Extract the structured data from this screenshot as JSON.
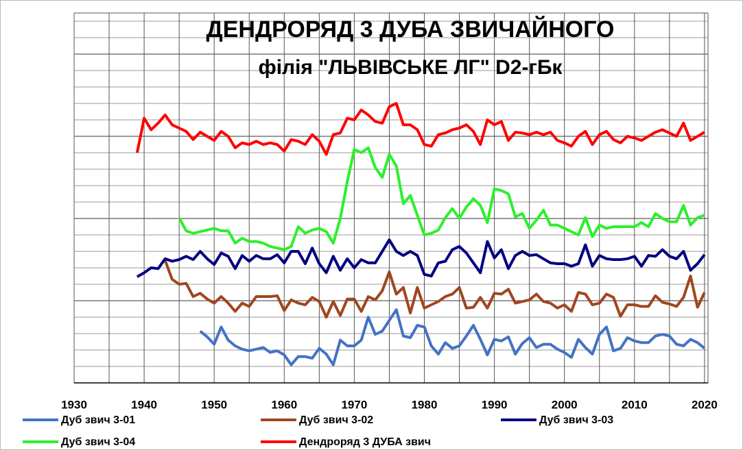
{
  "chart_data": {
    "type": "line",
    "title": "ДЕНДРОРЯД 3       ДУБА ЗВИЧАЙНОГО",
    "subtitle": "філія \"ЛЬВІВСЬКЕ ЛГ\"     D2-гБк",
    "x": [
      1939,
      1940,
      1941,
      1942,
      1943,
      1944,
      1945,
      1946,
      1947,
      1948,
      1949,
      1950,
      1951,
      1952,
      1953,
      1954,
      1955,
      1956,
      1957,
      1958,
      1959,
      1960,
      1961,
      1962,
      1963,
      1964,
      1965,
      1966,
      1967,
      1968,
      1969,
      1970,
      1971,
      1972,
      1973,
      1974,
      1975,
      1976,
      1977,
      1978,
      1979,
      1980,
      1981,
      1982,
      1983,
      1984,
      1985,
      1986,
      1987,
      1988,
      1989,
      1990,
      1991,
      1992,
      1993,
      1994,
      1995,
      1996,
      1997,
      1998,
      1999,
      2000,
      2001,
      2002,
      2003,
      2004,
      2005,
      2006,
      2007,
      2008,
      2009,
      2010,
      2011,
      2012,
      2013,
      2014,
      2015,
      2016,
      2017,
      2018,
      2019,
      2020
    ],
    "series": [
      {
        "name": "Дуб звич 3-01",
        "color": "#4472c4",
        "values": [
          null,
          null,
          null,
          null,
          null,
          null,
          null,
          null,
          null,
          3.15,
          2.8,
          2.35,
          3.4,
          2.6,
          2.25,
          2.05,
          1.95,
          2.05,
          2.15,
          1.85,
          1.95,
          1.7,
          1.1,
          1.6,
          1.6,
          1.5,
          2.1,
          1.75,
          1.1,
          2.6,
          2.25,
          2.25,
          2.6,
          4.0,
          2.95,
          3.15,
          3.8,
          4.45,
          2.85,
          2.75,
          3.5,
          3.4,
          2.25,
          1.75,
          2.45,
          2.1,
          2.25,
          2.85,
          3.5,
          2.65,
          1.7,
          2.65,
          2.55,
          2.8,
          1.75,
          2.4,
          2.75,
          2.15,
          2.35,
          2.35,
          2.05,
          1.85,
          1.55,
          2.65,
          2.15,
          1.75,
          2.95,
          3.4,
          1.95,
          2.1,
          2.75,
          2.55,
          2.45,
          2.45,
          2.85,
          2.95,
          2.85,
          2.35,
          2.25,
          2.65,
          2.45,
          2.1
        ]
      },
      {
        "name": "Дуб звич 3-02",
        "color": "#a0461e",
        "values": [
          null,
          null,
          null,
          null,
          7.45,
          6.3,
          6.0,
          6.05,
          5.25,
          5.45,
          5.1,
          4.85,
          5.25,
          4.85,
          4.35,
          4.85,
          4.65,
          5.25,
          5.25,
          5.25,
          5.3,
          4.4,
          5.05,
          4.85,
          4.75,
          5.2,
          4.95,
          4.0,
          4.95,
          4.1,
          5.1,
          5.1,
          4.35,
          5.25,
          5.05,
          5.6,
          6.75,
          5.4,
          5.8,
          4.25,
          5.8,
          4.55,
          4.75,
          4.95,
          5.25,
          5.4,
          5.8,
          4.55,
          4.6,
          5.2,
          4.55,
          5.45,
          5.4,
          5.7,
          4.85,
          4.95,
          5.05,
          5.4,
          4.95,
          4.85,
          4.55,
          4.75,
          4.35,
          5.5,
          5.4,
          4.75,
          4.85,
          5.4,
          5.2,
          4.05,
          4.75,
          4.75,
          4.65,
          4.65,
          5.3,
          4.9,
          4.8,
          4.65,
          5.2,
          6.5,
          4.6,
          5.5
        ]
      },
      {
        "name": "Дуб звич 3-03",
        "color": "#000080",
        "values": [
          6.45,
          6.7,
          7.0,
          6.95,
          7.55,
          7.4,
          7.5,
          7.7,
          7.5,
          8.0,
          7.55,
          7.2,
          7.9,
          7.7,
          6.95,
          7.75,
          7.4,
          7.75,
          7.55,
          7.55,
          7.8,
          7.3,
          8.0,
          8.0,
          7.25,
          8.2,
          7.25,
          6.7,
          7.7,
          6.85,
          7.55,
          7.0,
          7.5,
          7.3,
          7.3,
          8.0,
          8.7,
          8.0,
          7.75,
          8.0,
          7.75,
          6.6,
          6.5,
          7.3,
          7.4,
          8.1,
          8.3,
          7.9,
          7.3,
          6.7,
          8.6,
          7.6,
          8.1,
          6.95,
          7.75,
          8.0,
          7.75,
          7.8,
          7.55,
          7.3,
          7.25,
          7.25,
          7.1,
          7.25,
          8.4,
          7.1,
          7.75,
          7.55,
          7.5,
          7.5,
          7.55,
          7.7,
          7.1,
          7.75,
          7.7,
          8.1,
          7.7,
          7.55,
          8.0,
          6.85,
          7.25,
          7.8
        ]
      },
      {
        "name": "Дуб звич 3-04",
        "color": "#2bf02b",
        "values": [
          null,
          null,
          null,
          null,
          null,
          null,
          10.05,
          9.25,
          9.1,
          9.2,
          9.3,
          9.4,
          9.25,
          9.25,
          8.5,
          8.8,
          8.6,
          8.6,
          8.5,
          8.3,
          8.2,
          8.1,
          8.3,
          9.5,
          9.1,
          9.3,
          9.4,
          9.2,
          8.5,
          10.0,
          12.25,
          14.2,
          14.0,
          14.3,
          13.1,
          12.5,
          13.9,
          13.2,
          10.9,
          11.4,
          10.2,
          9.0,
          9.1,
          9.3,
          10.05,
          10.6,
          10.0,
          10.7,
          11.2,
          10.8,
          9.75,
          11.8,
          11.7,
          11.5,
          10.1,
          10.3,
          9.4,
          9.9,
          10.5,
          9.6,
          9.6,
          9.4,
          9.2,
          9.0,
          10.05,
          8.9,
          9.6,
          9.4,
          9.5,
          9.5,
          9.5,
          9.5,
          9.75,
          9.5,
          10.3,
          10.0,
          9.8,
          9.8,
          10.8,
          9.6,
          10.05,
          10.2
        ]
      },
      {
        "name": "Дендроряд 3 ДУБА звич",
        "color": "#ff0000",
        "values": [
          14.0,
          16.1,
          15.4,
          15.8,
          16.3,
          15.7,
          15.5,
          15.3,
          14.8,
          15.25,
          15.0,
          14.75,
          15.3,
          15.0,
          14.3,
          14.6,
          14.5,
          14.7,
          14.5,
          14.6,
          14.5,
          14.1,
          14.8,
          14.7,
          14.5,
          15.1,
          14.7,
          13.9,
          15.1,
          15.2,
          16.1,
          16.0,
          16.6,
          16.3,
          15.9,
          15.8,
          16.8,
          17.0,
          15.7,
          15.7,
          15.4,
          14.5,
          14.4,
          15.1,
          15.2,
          15.4,
          15.5,
          15.7,
          15.3,
          14.5,
          16.0,
          15.7,
          15.9,
          14.75,
          15.25,
          15.2,
          15.1,
          15.25,
          15.1,
          15.25,
          14.75,
          14.6,
          14.4,
          15.0,
          15.3,
          14.5,
          15.1,
          15.3,
          14.8,
          14.6,
          15.0,
          14.9,
          14.75,
          15.0,
          15.25,
          15.4,
          15.2,
          15.0,
          15.8,
          14.75,
          15.0,
          15.25
        ]
      }
    ],
    "xlim": [
      1930,
      2020.5
    ],
    "xticks": [
      1930,
      1940,
      1950,
      1960,
      1970,
      1980,
      1990,
      2000,
      2010,
      2020
    ],
    "xminor_ticks": [
      1935,
      1945,
      1955,
      1965,
      1975,
      1985,
      1995,
      2005,
      2015
    ],
    "ylim": [
      0,
      22.5
    ],
    "yticks": [
      0,
      1,
      2,
      3,
      4,
      5,
      6,
      7,
      8,
      9,
      10,
      11,
      12,
      13,
      14,
      15,
      16,
      17,
      18,
      19,
      20,
      21,
      22
    ],
    "grid": true,
    "legend": "bottom"
  }
}
